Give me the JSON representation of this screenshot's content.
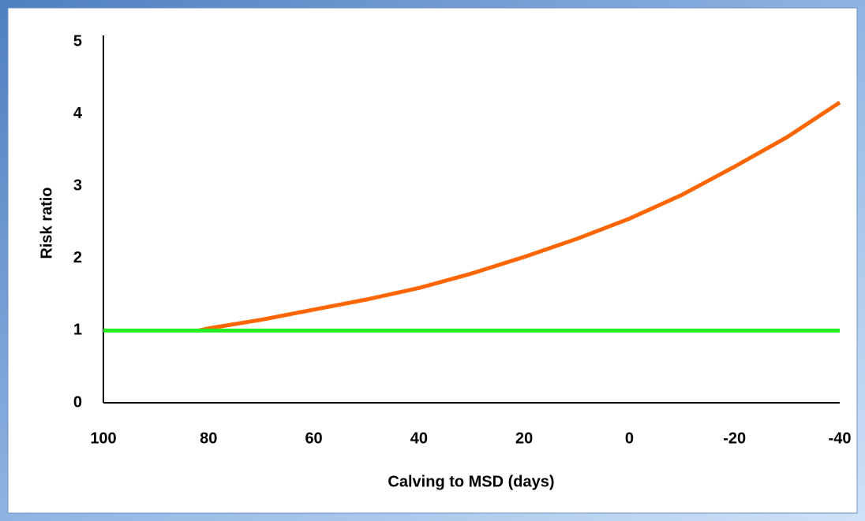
{
  "chart_data": {
    "type": "line",
    "x_label": "Calving to MSD (days)",
    "y_label": "Risk ratio",
    "xlim": [
      100,
      -40
    ],
    "xticks": [
      100,
      80,
      60,
      40,
      20,
      0,
      -20,
      -40
    ],
    "ylim": [
      0,
      5
    ],
    "yticks": [
      0,
      1,
      2,
      3,
      4,
      5
    ],
    "grid": false,
    "series": [
      {
        "color": "#ff6600",
        "x": [
          82,
          80,
          70,
          60,
          50,
          40,
          30,
          20,
          10,
          0,
          -10,
          -20,
          -30,
          -40
        ],
        "values": [
          1.0,
          1.03,
          1.15,
          1.29,
          1.43,
          1.59,
          1.79,
          2.02,
          2.27,
          2.55,
          2.88,
          3.27,
          3.68,
          4.16
        ]
      },
      {
        "color": "#22ee22",
        "x": [
          100,
          -40
        ],
        "values": [
          1,
          1
        ]
      }
    ]
  }
}
